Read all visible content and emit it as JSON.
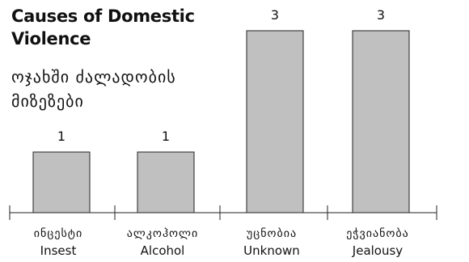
{
  "chart_data": {
    "type": "bar",
    "title": "Causes of Domestic\nViolence",
    "subtitle": "ოჯახში ძალადობის\nმიზეზები",
    "categories": [
      {
        "ka": "ინცესტი",
        "en": "Insest"
      },
      {
        "ka": "ალკოჰოლი",
        "en": "Alcohol"
      },
      {
        "ka": "უცნობია",
        "en": "Unknown"
      },
      {
        "ka": "ეჭვიანობა",
        "en": "Jealousy"
      }
    ],
    "values": [
      1,
      1,
      3,
      3
    ],
    "data_labels": [
      "1",
      "1",
      "3",
      "3"
    ],
    "ylim": [
      0,
      3.4
    ],
    "grid": false,
    "legend": "none",
    "bar_color": "#c0c0c0",
    "bar_stroke": "#222222"
  }
}
